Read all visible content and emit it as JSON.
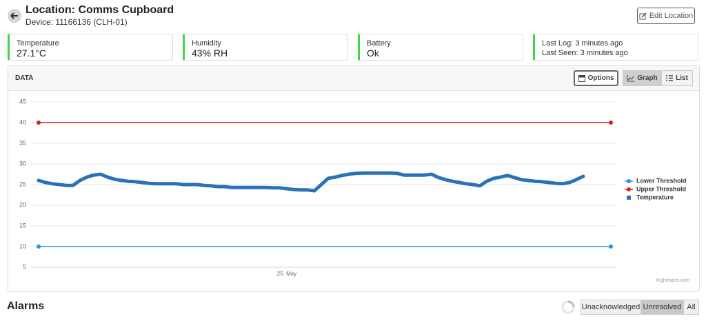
{
  "header": {
    "title": "Location: Comms Cupboard",
    "subtitle": "Device: 11166136 (CLH-01)",
    "edit_button": "Edit Location"
  },
  "cards": [
    {
      "label": "Temperature",
      "value": "27.1°C"
    },
    {
      "label": "Humidity",
      "value": "43% RH"
    },
    {
      "label": "Battery",
      "value": "Ok"
    },
    {
      "lines": [
        "Last Log: 3 minutes ago",
        "Last Seen: 3 minutes ago"
      ]
    }
  ],
  "panel": {
    "title": "DATA",
    "options_button": "Options",
    "views": [
      "Graph",
      "List"
    ],
    "active_view": 0
  },
  "chart_data": {
    "type": "line",
    "categories": [
      null,
      null,
      null,
      null,
      null,
      null,
      null,
      null,
      null,
      null,
      null,
      null,
      null,
      null,
      null,
      null,
      null,
      null,
      null,
      null,
      null,
      null,
      null,
      null,
      null,
      null,
      null,
      null,
      null,
      null,
      null,
      null,
      null,
      null,
      null,
      null,
      "25. May",
      null,
      null,
      null,
      null,
      null,
      null,
      null,
      null,
      null,
      null,
      null,
      null,
      null,
      null,
      null,
      null,
      null,
      null,
      null,
      null,
      null,
      null,
      null,
      null,
      null,
      null,
      null,
      null,
      null,
      null,
      null,
      null,
      null,
      null,
      null,
      null,
      null,
      null,
      null,
      null,
      null,
      null,
      null,
      null,
      null,
      null,
      null
    ],
    "series": [
      {
        "name": "Lower Threshold",
        "color": "#2196e8",
        "markers": true,
        "values": [
          10,
          10,
          10,
          10,
          10,
          10,
          10,
          10,
          10,
          10,
          10,
          10,
          10,
          10,
          10,
          10,
          10,
          10,
          10,
          10,
          10,
          10,
          10,
          10,
          10,
          10,
          10,
          10,
          10,
          10,
          10,
          10,
          10,
          10,
          10,
          10,
          10,
          10,
          10,
          10,
          10,
          10,
          10,
          10,
          10,
          10,
          10,
          10,
          10,
          10,
          10,
          10,
          10,
          10,
          10,
          10,
          10,
          10,
          10,
          10,
          10,
          10,
          10,
          10,
          10,
          10,
          10,
          10,
          10,
          10,
          10,
          10,
          10,
          10,
          10,
          10,
          10,
          10,
          10,
          10,
          10,
          10,
          10,
          10
        ]
      },
      {
        "name": "Upper Threshold",
        "color": "#d42020",
        "markers": true,
        "values": [
          40,
          40,
          40,
          40,
          40,
          40,
          40,
          40,
          40,
          40,
          40,
          40,
          40,
          40,
          40,
          40,
          40,
          40,
          40,
          40,
          40,
          40,
          40,
          40,
          40,
          40,
          40,
          40,
          40,
          40,
          40,
          40,
          40,
          40,
          40,
          40,
          40,
          40,
          40,
          40,
          40,
          40,
          40,
          40,
          40,
          40,
          40,
          40,
          40,
          40,
          40,
          40,
          40,
          40,
          40,
          40,
          40,
          40,
          40,
          40,
          40,
          40,
          40,
          40,
          40,
          40,
          40,
          40,
          40,
          40,
          40,
          40,
          40,
          40,
          40,
          40,
          40,
          40,
          40,
          40,
          40,
          40,
          40,
          40
        ]
      },
      {
        "name": "Temperature",
        "color": "#2a72b8",
        "markers": false,
        "values": [
          26.0,
          25.5,
          25.2,
          25.0,
          24.8,
          24.8,
          26.0,
          26.8,
          27.3,
          27.5,
          26.8,
          26.3,
          26.0,
          25.8,
          25.7,
          25.5,
          25.3,
          25.2,
          25.2,
          25.2,
          25.2,
          25.0,
          25.0,
          25.0,
          24.8,
          24.7,
          24.5,
          24.5,
          24.3,
          24.3,
          24.3,
          24.3,
          24.3,
          24.3,
          24.2,
          24.2,
          24.0,
          23.8,
          23.7,
          23.7,
          23.5,
          25.0,
          26.5,
          26.8,
          27.2,
          27.5,
          27.7,
          27.8,
          27.8,
          27.8,
          27.8,
          27.8,
          27.7,
          27.3,
          27.3,
          27.3,
          27.3,
          27.5,
          26.7,
          26.2,
          25.8,
          25.5,
          25.2,
          25.0,
          24.7,
          25.8,
          26.5,
          26.8,
          27.2,
          26.7,
          26.2,
          26.0,
          25.8,
          25.7,
          25.5,
          25.3,
          25.2,
          25.5,
          26.2,
          27.0,
          null,
          null,
          null,
          null
        ]
      }
    ],
    "ylim": [
      5,
      45
    ],
    "yticks": [
      5,
      10,
      15,
      20,
      25,
      30,
      35,
      40,
      45
    ],
    "grid": true,
    "legend": "right",
    "credits": "Highcharts.com"
  },
  "alarms": {
    "title": "Alarms",
    "filters": [
      "Unacknowledged",
      "Unresolved",
      "All"
    ],
    "active_filter": 1
  }
}
